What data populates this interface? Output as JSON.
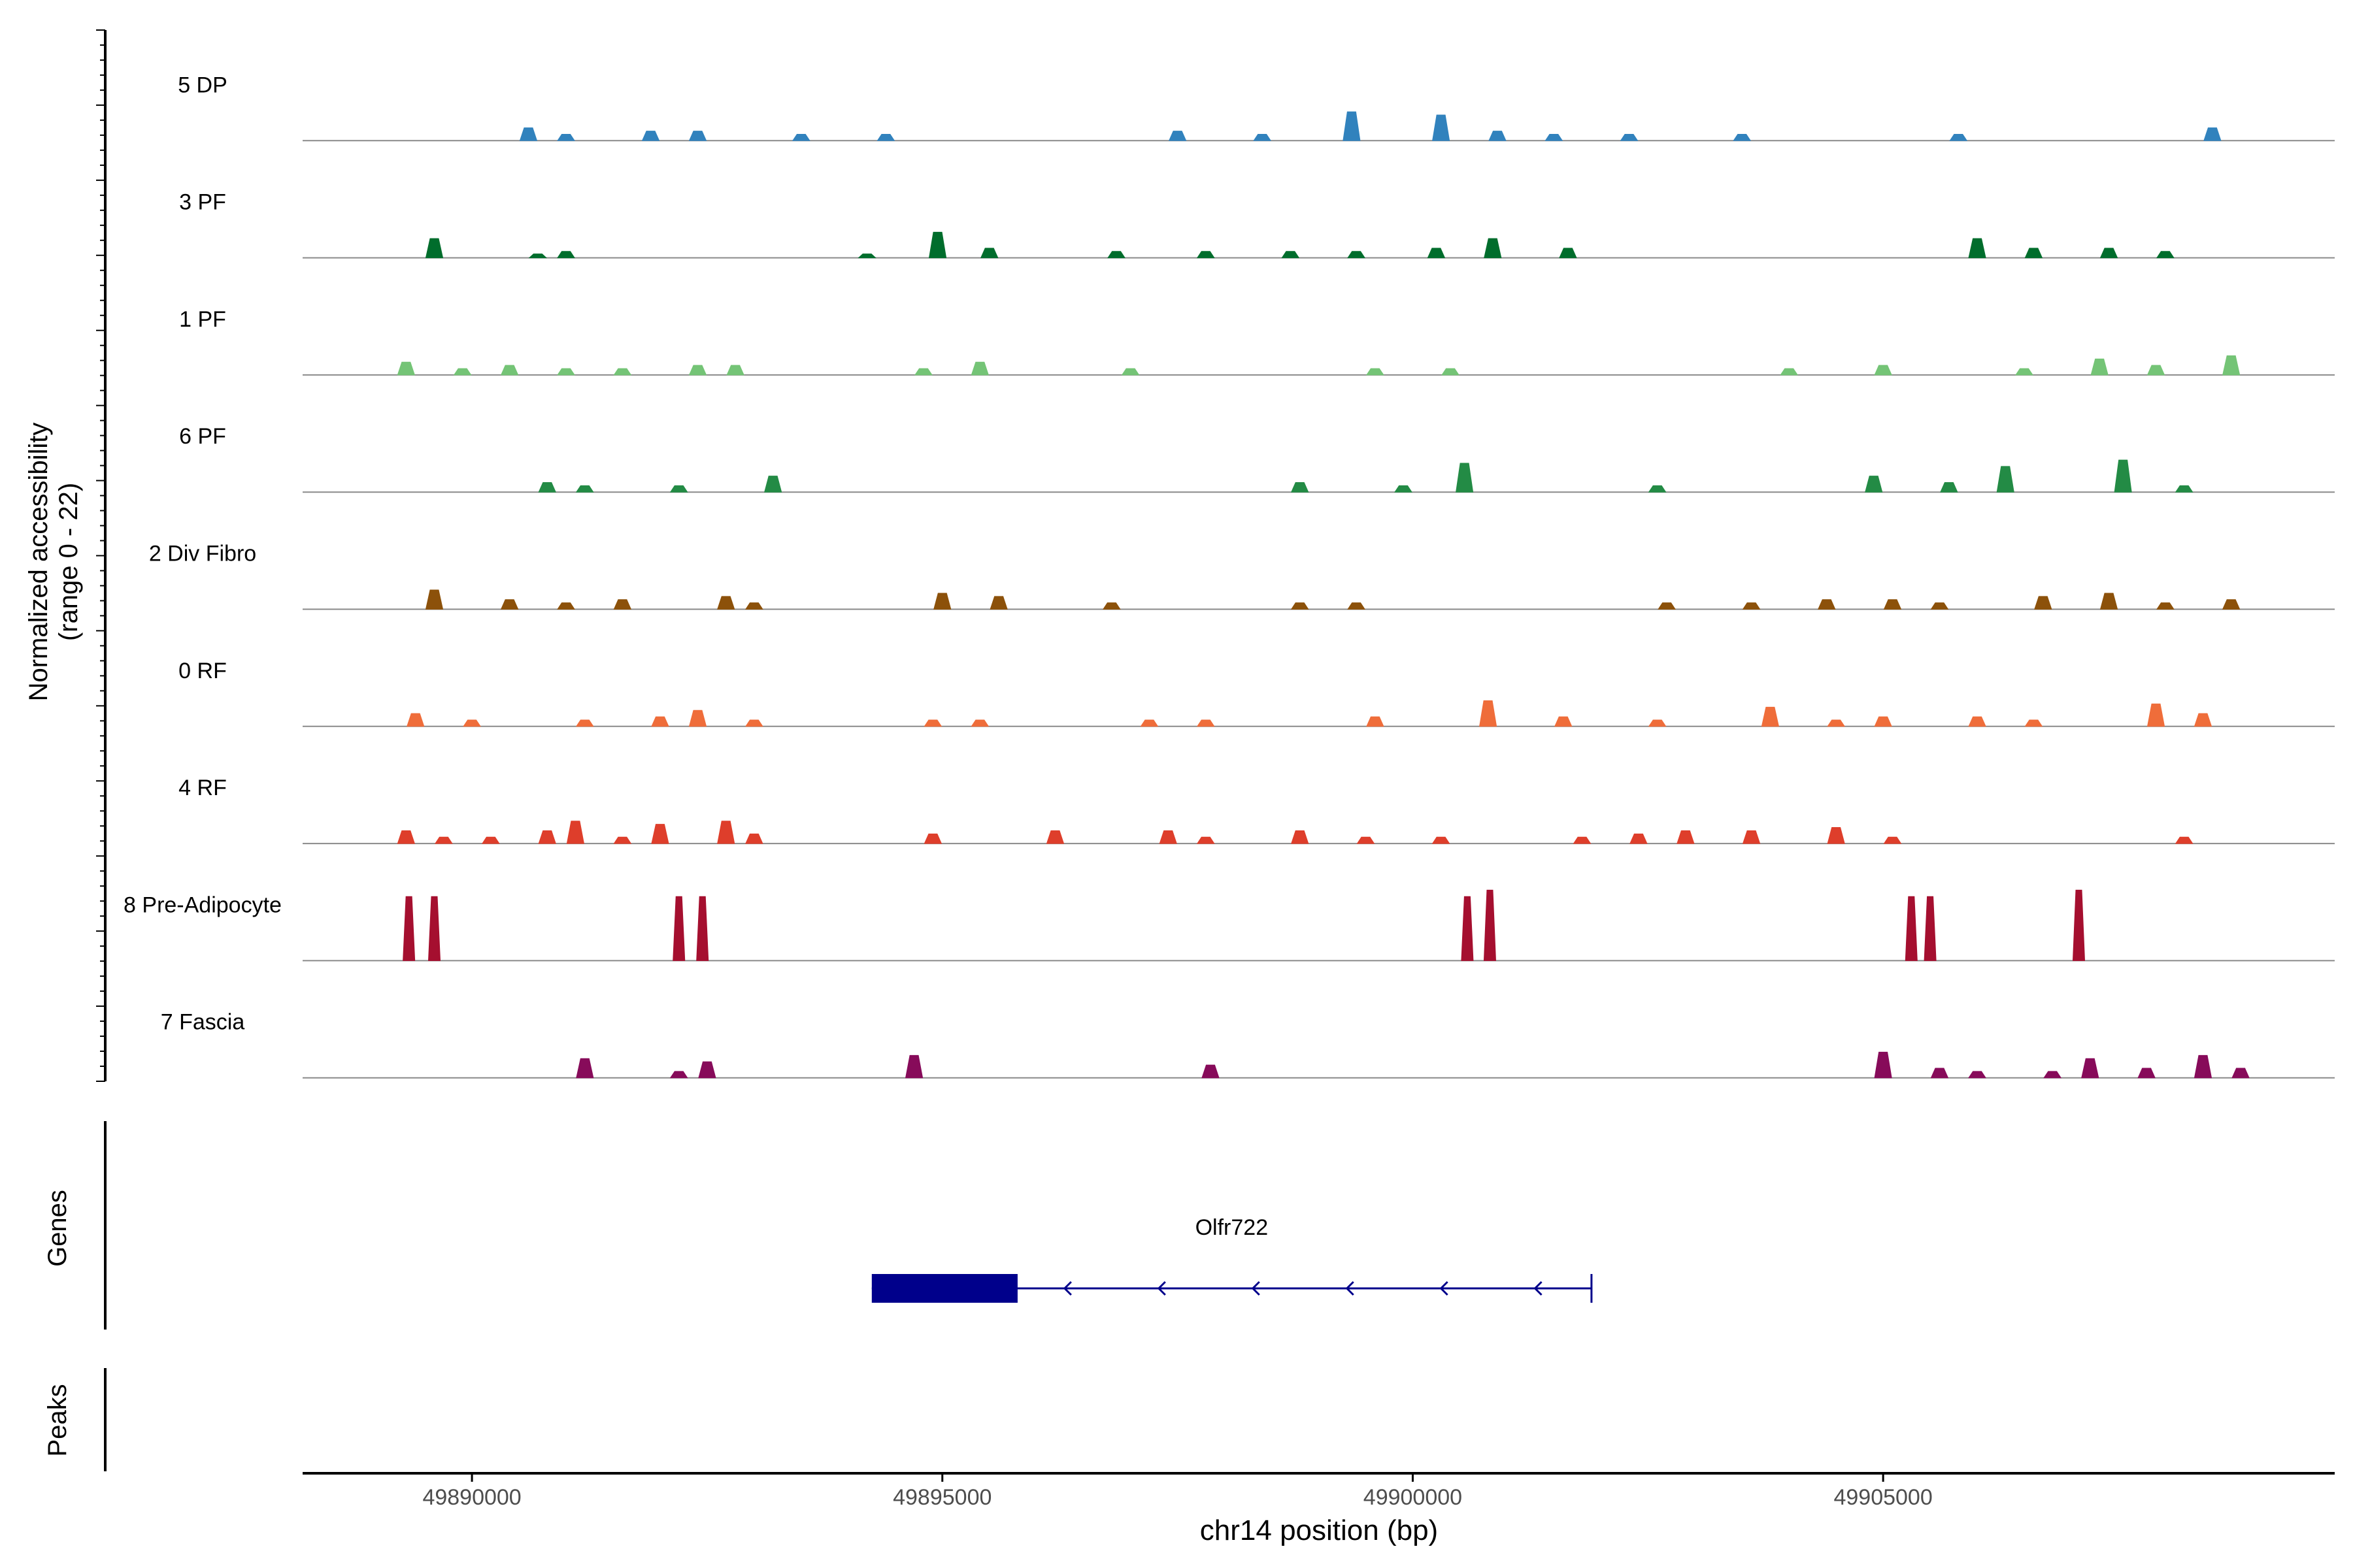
{
  "chart_data": {
    "type": "coverage-track",
    "region": "chr14",
    "x_range": [
      49888200,
      49909800
    ],
    "x_ticks": [
      49890000,
      49895000,
      49900000,
      49905000
    ],
    "x_tick_labels": [
      "49890000",
      "49895000",
      "49900000",
      "49905000"
    ],
    "xlabel": "chr14 position (bp)",
    "ylabel": "Normalized accessibility",
    "ylabel_range": "(range 0 - 22)",
    "y_range": [
      0,
      22
    ],
    "tracks": [
      {
        "name": "5 DP",
        "color": "#3182bd",
        "peaks": [
          [
            49890600,
            4
          ],
          [
            49891000,
            2
          ],
          [
            49891900,
            3
          ],
          [
            49892400,
            3
          ],
          [
            49893500,
            2
          ],
          [
            49894400,
            2
          ],
          [
            49897500,
            3
          ],
          [
            49898400,
            2
          ],
          [
            49899350,
            9
          ],
          [
            49900300,
            8
          ],
          [
            49900900,
            3
          ],
          [
            49901500,
            2
          ],
          [
            49902300,
            2
          ],
          [
            49903500,
            2
          ],
          [
            49905800,
            2
          ],
          [
            49908500,
            4
          ]
        ]
      },
      {
        "name": "3 PF",
        "color": "#006d2c",
        "peaks": [
          [
            49889600,
            6
          ],
          [
            49890700,
            1
          ],
          [
            49891000,
            2
          ],
          [
            49894200,
            1
          ],
          [
            49894950,
            8
          ],
          [
            49895500,
            3
          ],
          [
            49896850,
            2
          ],
          [
            49897800,
            2
          ],
          [
            49898700,
            2
          ],
          [
            49899400,
            2
          ],
          [
            49900250,
            3
          ],
          [
            49900850,
            6
          ],
          [
            49901650,
            3
          ],
          [
            49906000,
            6
          ],
          [
            49906600,
            3
          ],
          [
            49907400,
            3
          ],
          [
            49908000,
            2
          ]
        ]
      },
      {
        "name": "1 PF",
        "color": "#74c476",
        "peaks": [
          [
            49889300,
            4
          ],
          [
            49889900,
            2
          ],
          [
            49890400,
            3
          ],
          [
            49891000,
            2
          ],
          [
            49891600,
            2
          ],
          [
            49892400,
            3
          ],
          [
            49892800,
            3
          ],
          [
            49894800,
            2
          ],
          [
            49895400,
            4
          ],
          [
            49897000,
            2
          ],
          [
            49899600,
            2
          ],
          [
            49900400,
            2
          ],
          [
            49904000,
            2
          ],
          [
            49905000,
            3
          ],
          [
            49906500,
            2
          ],
          [
            49907300,
            5
          ],
          [
            49907900,
            3
          ],
          [
            49908700,
            6
          ]
        ]
      },
      {
        "name": "6 PF",
        "color": "#238b45",
        "peaks": [
          [
            49890800,
            3
          ],
          [
            49891200,
            2
          ],
          [
            49892200,
            2
          ],
          [
            49893200,
            5
          ],
          [
            49898800,
            3
          ],
          [
            49899900,
            2
          ],
          [
            49900550,
            9
          ],
          [
            49902600,
            2
          ],
          [
            49904900,
            5
          ],
          [
            49905700,
            3
          ],
          [
            49906300,
            8
          ],
          [
            49907550,
            10
          ],
          [
            49908200,
            2
          ]
        ]
      },
      {
        "name": "2 Div Fibro",
        "color": "#8c510a",
        "peaks": [
          [
            49889600,
            6
          ],
          [
            49890400,
            3
          ],
          [
            49891000,
            2
          ],
          [
            49891600,
            3
          ],
          [
            49892700,
            4
          ],
          [
            49893000,
            2
          ],
          [
            49895000,
            5
          ],
          [
            49895600,
            4
          ],
          [
            49896800,
            2
          ],
          [
            49898800,
            2
          ],
          [
            49899400,
            2
          ],
          [
            49902700,
            2
          ],
          [
            49903600,
            2
          ],
          [
            49904400,
            3
          ],
          [
            49905100,
            3
          ],
          [
            49905600,
            2
          ],
          [
            49906700,
            4
          ],
          [
            49907400,
            5
          ],
          [
            49908000,
            2
          ],
          [
            49908700,
            3
          ]
        ]
      },
      {
        "name": "0 RF",
        "color": "#ef6d3a",
        "peaks": [
          [
            49889400,
            4
          ],
          [
            49890000,
            2
          ],
          [
            49891200,
            2
          ],
          [
            49892000,
            3
          ],
          [
            49892400,
            5
          ],
          [
            49893000,
            2
          ],
          [
            49894900,
            2
          ],
          [
            49895400,
            2
          ],
          [
            49897200,
            2
          ],
          [
            49897800,
            2
          ],
          [
            49899600,
            3
          ],
          [
            49900800,
            8
          ],
          [
            49901600,
            3
          ],
          [
            49902600,
            2
          ],
          [
            49903800,
            6
          ],
          [
            49904500,
            2
          ],
          [
            49905000,
            3
          ],
          [
            49906000,
            3
          ],
          [
            49906600,
            2
          ],
          [
            49907900,
            7
          ],
          [
            49908400,
            4
          ]
        ]
      },
      {
        "name": "4 RF",
        "color": "#de3e2b",
        "peaks": [
          [
            49889300,
            4
          ],
          [
            49889700,
            2
          ],
          [
            49890200,
            2
          ],
          [
            49890800,
            4
          ],
          [
            49891100,
            7
          ],
          [
            49891600,
            2
          ],
          [
            49892000,
            6
          ],
          [
            49892700,
            7
          ],
          [
            49893000,
            3
          ],
          [
            49894900,
            3
          ],
          [
            49896200,
            4
          ],
          [
            49897400,
            4
          ],
          [
            49897800,
            2
          ],
          [
            49898800,
            4
          ],
          [
            49899500,
            2
          ],
          [
            49900300,
            2
          ],
          [
            49901800,
            2
          ],
          [
            49902400,
            3
          ],
          [
            49902900,
            4
          ],
          [
            49903600,
            4
          ],
          [
            49904500,
            5
          ],
          [
            49905100,
            2
          ],
          [
            49908200,
            2
          ]
        ]
      },
      {
        "name": "8 Pre-Adipocyte",
        "color": "#a50f2f",
        "peaks": [
          [
            49889330,
            20
          ],
          [
            49889600,
            20
          ],
          [
            49892200,
            20
          ],
          [
            49892450,
            20
          ],
          [
            49900580,
            20
          ],
          [
            49900820,
            22
          ],
          [
            49905300,
            20
          ],
          [
            49905500,
            20
          ],
          [
            49907080,
            22
          ]
        ]
      },
      {
        "name": "7 Fascia",
        "color": "#870b5a",
        "peaks": [
          [
            49891200,
            6
          ],
          [
            49892200,
            2
          ],
          [
            49892500,
            5
          ],
          [
            49894700,
            7
          ],
          [
            49897850,
            4
          ],
          [
            49905000,
            8
          ],
          [
            49905600,
            3
          ],
          [
            49906000,
            2
          ],
          [
            49906800,
            2
          ],
          [
            49907200,
            6
          ],
          [
            49907800,
            3
          ],
          [
            49908400,
            7
          ],
          [
            49908800,
            3
          ]
        ]
      }
    ],
    "panels": {
      "genes_label": "Genes",
      "peaks_label": "Peaks"
    },
    "gene": {
      "name": "Olfr722",
      "start": 49894250,
      "end": 49901900,
      "exon_start": 49894250,
      "exon_end": 49895800,
      "strand": "-",
      "arrow_positions": [
        49896300,
        49897300,
        49898300,
        49899300,
        49900300,
        49901300
      ]
    }
  }
}
